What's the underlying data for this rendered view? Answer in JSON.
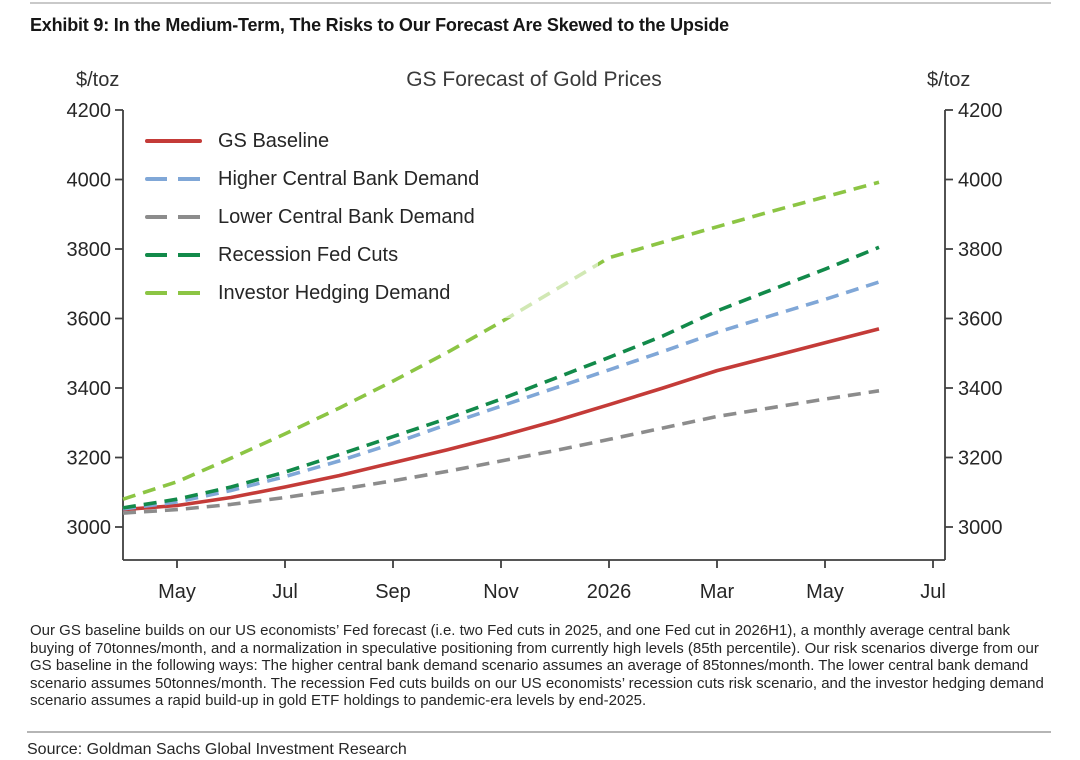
{
  "page": {
    "exhibit_title": "Exhibit 9: In the Medium-Term, The Risks to Our Forecast Are Skewed to the Upside",
    "footnote": "Our GS baseline builds on our US economists’ Fed forecast (i.e. two Fed cuts in 2025, and one Fed cut in 2026H1), a monthly average central bank buying of 70tonnes/month, and a normalization in speculative positioning from currently high levels (85th percentile). Our risk scenarios diverge from our GS baseline in the following ways: The higher central bank demand scenario assumes an average of 85tonnes/month. The lower central bank demand scenario assumes 50tonnes/month. The recession Fed cuts builds on our US economists’ recession cuts risk scenario, and the investor hedging demand scenario assumes a rapid build-up in gold ETF holdings to pandemic-era levels by end-2025.",
    "source": "Source: Goldman Sachs Global Investment Research"
  },
  "chart_data": {
    "type": "line",
    "title": "GS Forecast of Gold Prices",
    "y_unit_left": "$/toz",
    "y_unit_right": "$/toz",
    "ylim": [
      2900,
      4220
    ],
    "y_ticks": [
      3000,
      3200,
      3400,
      3600,
      3800,
      4000,
      4200
    ],
    "x": [
      "Apr-25",
      "May-25",
      "Jun-25",
      "Jul-25",
      "Aug-25",
      "Sep-25",
      "Oct-25",
      "Nov-25",
      "Dec-25",
      "Jan-26",
      "Feb-26",
      "Mar-26",
      "Apr-26",
      "May-26",
      "Jun-26"
    ],
    "x_tick_labels": [
      "May",
      "Jul",
      "Sep",
      "Nov",
      "2026",
      "Mar",
      "May",
      "Jul"
    ],
    "x_tick_positions": [
      1,
      3,
      5,
      7,
      9,
      11,
      13,
      15
    ],
    "grid": false,
    "legend_position": "upper-left",
    "series": [
      {
        "name": "GS Baseline",
        "color": "#c43b38",
        "style": "solid",
        "values": [
          3050,
          3062,
          3085,
          3115,
          3148,
          3185,
          3222,
          3262,
          3305,
          3352,
          3400,
          3450,
          3490,
          3530,
          3570
        ]
      },
      {
        "name": "Higher Central Bank Demand",
        "color": "#80a7d7",
        "style": "dashed",
        "values": [
          3052,
          3072,
          3105,
          3145,
          3190,
          3240,
          3295,
          3348,
          3400,
          3452,
          3505,
          3560,
          3608,
          3655,
          3705
        ]
      },
      {
        "name": "Lower Central Bank Demand",
        "color": "#8c8c8c",
        "style": "dashed",
        "values": [
          3040,
          3050,
          3065,
          3085,
          3108,
          3133,
          3160,
          3190,
          3220,
          3252,
          3285,
          3318,
          3343,
          3368,
          3392
        ]
      },
      {
        "name": "Recession Fed Cuts",
        "color": "#128a4a",
        "style": "dashed",
        "values": [
          3055,
          3080,
          3115,
          3158,
          3208,
          3260,
          3312,
          3368,
          3428,
          3488,
          3550,
          3622,
          3682,
          3742,
          3805
        ]
      },
      {
        "name": "Investor Hedging Demand",
        "color": "#8cc544",
        "style": "dashed",
        "values": [
          3080,
          3130,
          3198,
          3268,
          3342,
          3420,
          3502,
          3590,
          3682,
          3775,
          3820,
          3864,
          3908,
          3950,
          3992
        ]
      }
    ]
  }
}
